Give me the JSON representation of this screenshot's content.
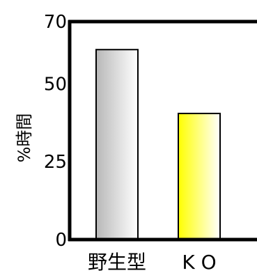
{
  "chart_data": {
    "type": "bar",
    "title": "",
    "xlabel": "",
    "ylabel": "%時間",
    "ylim": [
      0,
      70
    ],
    "yticks": [
      0,
      25,
      50,
      70
    ],
    "ytick_labels": [
      "0",
      "25",
      "50",
      "70"
    ],
    "categories": [
      "野生型",
      "K O"
    ],
    "values": [
      61,
      40.5
    ],
    "bar_gradients": [
      [
        "#b8b8b8",
        "#ffffff"
      ],
      [
        "#ffff00",
        "#ffffff"
      ]
    ],
    "grid": false
  }
}
